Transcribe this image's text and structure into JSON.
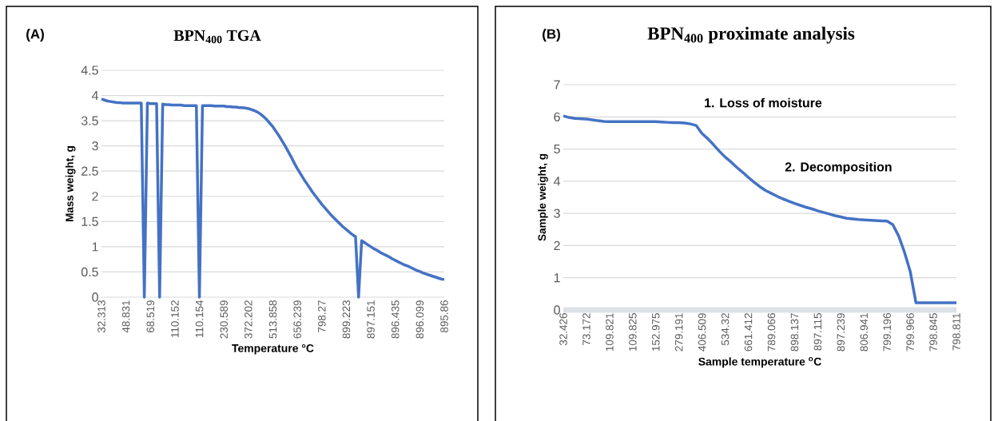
{
  "chart_data": [
    {
      "type": "line",
      "title": "BPN$_{400}$ TGA",
      "xlabel": "Temperature °C",
      "ylabel": "Mass weight, g",
      "color": "#4472c4",
      "grid": "y",
      "ylim": [
        0,
        4.5
      ],
      "yticks": [
        0,
        0.5,
        1,
        1.5,
        2,
        2.5,
        3,
        3.5,
        4,
        4.5
      ],
      "annotations": [
        "(A)"
      ],
      "categories": [
        "32.313",
        null,
        null,
        null,
        null,
        null,
        null,
        null,
        "48.831",
        null,
        null,
        null,
        null,
        null,
        null,
        null,
        "68.519",
        null,
        null,
        null,
        null,
        null,
        null,
        null,
        "110.152",
        null,
        null,
        null,
        null,
        null,
        null,
        null,
        "110.154",
        null,
        null,
        null,
        null,
        null,
        null,
        null,
        "230.589",
        null,
        null,
        null,
        null,
        null,
        null,
        null,
        "372.202",
        null,
        null,
        null,
        null,
        null,
        null,
        null,
        "513.858",
        null,
        null,
        null,
        null,
        null,
        null,
        null,
        "656.239",
        null,
        null,
        null,
        null,
        null,
        null,
        null,
        "798.27",
        null,
        null,
        null,
        null,
        null,
        null,
        null,
        "899.223",
        null,
        null,
        null,
        null,
        null,
        null,
        null,
        "897.151",
        null,
        null,
        null,
        null,
        null,
        null,
        null,
        "896.435",
        null,
        null,
        null,
        null,
        null,
        null,
        null,
        "896.099",
        null,
        null,
        null,
        null,
        null,
        null,
        null,
        "895.86"
      ],
      "values": [
        3.93,
        3.91,
        3.89,
        3.88,
        3.87,
        3.86,
        3.86,
        3.85,
        3.85,
        3.85,
        3.85,
        3.85,
        3.85,
        3.85,
        0,
        3.85,
        3.84,
        3.84,
        3.84,
        0,
        3.83,
        3.82,
        3.82,
        3.81,
        3.81,
        3.81,
        3.81,
        3.8,
        3.8,
        3.8,
        3.8,
        3.8,
        0,
        3.8,
        3.8,
        3.8,
        3.8,
        3.79,
        3.79,
        3.79,
        3.79,
        3.78,
        3.78,
        3.77,
        3.77,
        3.76,
        3.76,
        3.75,
        3.74,
        3.72,
        3.7,
        3.67,
        3.63,
        3.58,
        3.52,
        3.45,
        3.38,
        3.29,
        3.2,
        3.1,
        3.0,
        2.89,
        2.78,
        2.66,
        2.55,
        2.45,
        2.35,
        2.26,
        2.17,
        2.08,
        2.0,
        1.92,
        1.84,
        1.77,
        1.7,
        1.63,
        1.57,
        1.51,
        1.45,
        1.39,
        1.34,
        1.29,
        1.24,
        1.2,
        0,
        1.12,
        1.08,
        1.04,
        1.0,
        0.96,
        0.93,
        0.89,
        0.86,
        0.83,
        0.8,
        0.76,
        0.73,
        0.7,
        0.67,
        0.64,
        0.62,
        0.59,
        0.56,
        0.53,
        0.51,
        0.48,
        0.46,
        0.44,
        0.42,
        0.4,
        0.38,
        0.36,
        0.35
      ]
    },
    {
      "type": "line",
      "title": "BPN$_{400}$ proximate analysis",
      "xlabel": "Sample temperature $^{o}$C",
      "ylabel": "Sample weight, g",
      "color": "#4472c4",
      "grid": "y",
      "ylim": [
        0,
        7
      ],
      "yticks": [
        0,
        1,
        2,
        3,
        4,
        5,
        6,
        7
      ],
      "annotations": [
        "(B)",
        "1. Loss of moisture",
        "2. Decomposition"
      ],
      "categories": [
        "32.426",
        null,
        null,
        null,
        "73.172",
        null,
        null,
        null,
        "109.821",
        null,
        null,
        null,
        "109.825",
        null,
        null,
        null,
        "152.975",
        null,
        null,
        null,
        "279.191",
        null,
        null,
        null,
        "406.509",
        null,
        null,
        null,
        "534.32",
        null,
        null,
        null,
        "661.412",
        null,
        null,
        null,
        "789.066",
        null,
        null,
        null,
        "898.137",
        null,
        null,
        null,
        "897.115",
        null,
        null,
        null,
        "897.239",
        null,
        null,
        null,
        "806.941",
        null,
        null,
        null,
        "799.196",
        null,
        null,
        null,
        "799.966",
        null,
        null,
        null,
        "798.845",
        null,
        null,
        null,
        "798.811"
      ],
      "values": [
        6.03,
        5.98,
        5.95,
        5.94,
        5.93,
        5.91,
        5.88,
        5.86,
        5.85,
        5.85,
        5.85,
        5.85,
        5.85,
        5.85,
        5.85,
        5.85,
        5.85,
        5.84,
        5.83,
        5.82,
        5.82,
        5.81,
        5.78,
        5.73,
        5.48,
        5.32,
        5.13,
        4.93,
        4.75,
        4.6,
        4.43,
        4.28,
        4.12,
        3.97,
        3.83,
        3.71,
        3.62,
        3.53,
        3.45,
        3.38,
        3.31,
        3.25,
        3.19,
        3.14,
        3.08,
        3.03,
        2.98,
        2.93,
        2.89,
        2.85,
        2.83,
        2.81,
        2.8,
        2.79,
        2.78,
        2.77,
        2.76,
        2.65,
        2.3,
        1.8,
        1.2,
        0.22,
        0.22,
        0.22,
        0.22,
        0.22,
        0.22,
        0.22,
        0.22
      ]
    }
  ]
}
